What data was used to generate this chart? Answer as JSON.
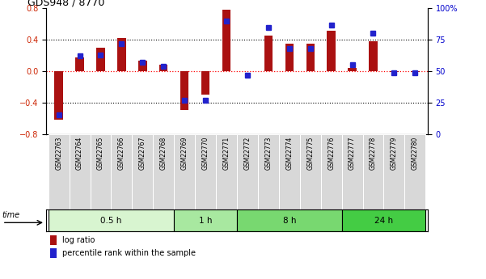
{
  "title": "GDS948 / 8770",
  "samples": [
    "GSM22763",
    "GSM22764",
    "GSM22765",
    "GSM22766",
    "GSM22767",
    "GSM22768",
    "GSM22769",
    "GSM22770",
    "GSM22771",
    "GSM22772",
    "GSM22773",
    "GSM22774",
    "GSM22775",
    "GSM22776",
    "GSM22777",
    "GSM22778",
    "GSM22779",
    "GSM22780"
  ],
  "log_ratio": [
    -0.62,
    0.18,
    0.3,
    0.42,
    0.13,
    0.08,
    -0.5,
    -0.3,
    0.78,
    0.0,
    0.45,
    0.35,
    0.35,
    0.52,
    0.04,
    0.38,
    -0.01,
    -0.01
  ],
  "percentile": [
    15,
    62,
    63,
    72,
    57,
    54,
    27,
    27,
    90,
    47,
    85,
    68,
    68,
    87,
    55,
    80,
    49,
    49
  ],
  "groups": [
    {
      "label": "0.5 h",
      "start": 0,
      "end": 6
    },
    {
      "label": "1 h",
      "start": 6,
      "end": 9
    },
    {
      "label": "8 h",
      "start": 9,
      "end": 14
    },
    {
      "label": "24 h",
      "start": 14,
      "end": 18
    }
  ],
  "group_colors": [
    "#d8f5d0",
    "#a8e8a0",
    "#78d870",
    "#44cc44"
  ],
  "bar_color": "#aa1111",
  "dot_color": "#2222cc",
  "ylim_left": [
    -0.8,
    0.8
  ],
  "ylim_right": [
    0,
    100
  ],
  "yticks_left": [
    -0.8,
    -0.4,
    0.0,
    0.4,
    0.8
  ],
  "yticks_right": [
    0,
    25,
    50,
    75,
    100
  ],
  "ytick_labels_right": [
    "0",
    "25",
    "50",
    "75",
    "100%"
  ],
  "left_tick_color": "#cc2200",
  "right_tick_color": "#0000cc"
}
